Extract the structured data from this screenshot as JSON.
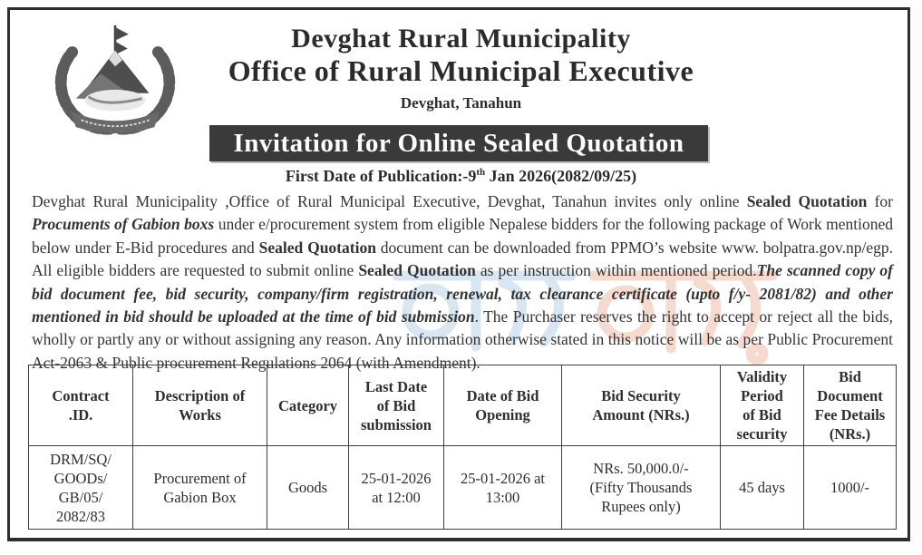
{
  "header": {
    "org_name": "Devghat Rural Municipality",
    "office_name": "Office of Rural Municipal Executive",
    "location": "Devghat, Tanahun",
    "banner_title": "Invitation for Online Sealed Quotation",
    "publication_prefix": "First Date of Publication:-9",
    "publication_sup": "th",
    "publication_suffix": " Jan 2026(2082/09/25)",
    "logo_name": "nepal-government-emblem"
  },
  "notice": {
    "segments": [
      {
        "s": "n",
        "t": "Devghat Rural Municipality ,Office of Rural Municipal Executive, Devghat, Tanahun invites only online "
      },
      {
        "s": "b",
        "t": "Sealed Quotation"
      },
      {
        "s": "n",
        "t": " for "
      },
      {
        "s": "bi",
        "t": "Procuments of Gabion boxs"
      },
      {
        "s": "n",
        "t": " under e/procurement system from eligible Nepalese bidders for the following package of Work mentioned below under E-Bid procedures and "
      },
      {
        "s": "b",
        "t": "Sealed Quotation"
      },
      {
        "s": "n",
        "t": " document can be downloaded from PPMO’s website www. bolpatra.gov.np/egp. All eligible bidders are requested to submit online "
      },
      {
        "s": "b",
        "t": "Sealed Quotation"
      },
      {
        "s": "n",
        "t": " as per instruction within mentioned period."
      },
      {
        "s": "bi",
        "t": "The scanned copy of bid document fee, bid security, company/firm registration, renewal, tax clearance certificate (upto f/y- 2081/82) and other mentioned in bid  should be uploaded at the time of bid submission"
      },
      {
        "s": "n",
        "t": ". The Purchaser reserves the right to accept or reject all the bids, wholly or partly any or without assigning any reason. Any information otherwise stated in this notice will be as per Public Procurement Act-2063 & Public procurement Regulations 2064 (with Amendment)."
      }
    ]
  },
  "table": {
    "headers": [
      "Contract\n.ID.",
      "Description of\nWorks",
      "Category",
      "Last Date\nof Bid\nsubmission",
      "Date of Bid\nOpening",
      "Bid Security\nAmount (NRs.)",
      "Validity\nPeriod\nof Bid\nsecurity",
      "Bid\nDocument\nFee  Details\n(NRs.)"
    ],
    "row": [
      "DRM/SQ/\nGOODs/\nGB/05/\n2082/83",
      "Procurement of\nGabion Box",
      "Goods",
      "25-01-2026\nat 12:00",
      "25-01-2026 at\n13:00",
      "NRs. 50,000.0/-\n(Fifty Thousands\nRupees only)",
      "45 days",
      "1000/-"
    ]
  },
  "colors": {
    "banner_bg": "#3a3a3a",
    "banner_text": "#ffffff",
    "border": "#2e2e2e",
    "text": "#333333",
    "watermark_blue": "#b9d3e6",
    "watermark_orange": "#f0bca8"
  }
}
